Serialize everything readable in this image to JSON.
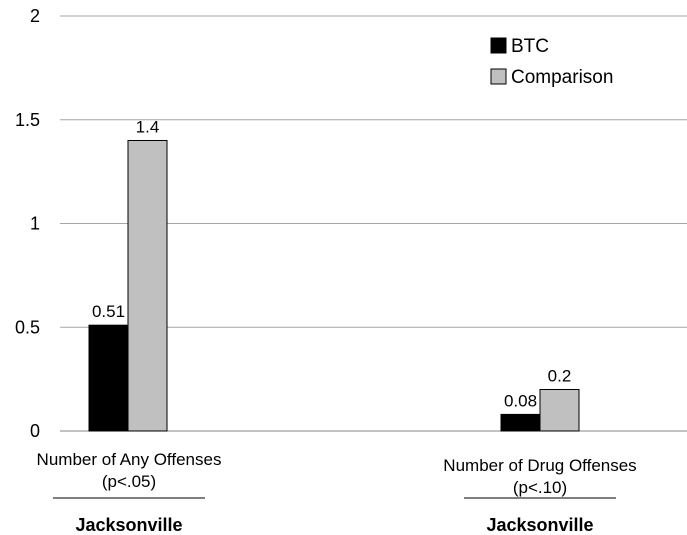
{
  "chart_data": {
    "type": "bar",
    "categories": [
      {
        "line1": "Number of Any Offenses",
        "line2": "(p<.05)",
        "group": "Jacksonville"
      },
      {
        "line1": "Number of Drug Offenses",
        "line2": "(p<.10)",
        "group": "Jacksonville"
      }
    ],
    "series": [
      {
        "name": "BTC",
        "color": "#000000",
        "values": [
          0.51,
          0.08
        ],
        "labels": [
          "0.51",
          "0.08"
        ]
      },
      {
        "name": "Comparison",
        "color": "#c0c0c0",
        "values": [
          1.4,
          0.2
        ],
        "labels": [
          "1.4",
          "0.2"
        ]
      }
    ],
    "y_ticks": [
      "0",
      "0.5",
      "1",
      "1.5",
      "2"
    ],
    "ylim": [
      0,
      2
    ],
    "grid": true,
    "legend_position": "top-right"
  }
}
